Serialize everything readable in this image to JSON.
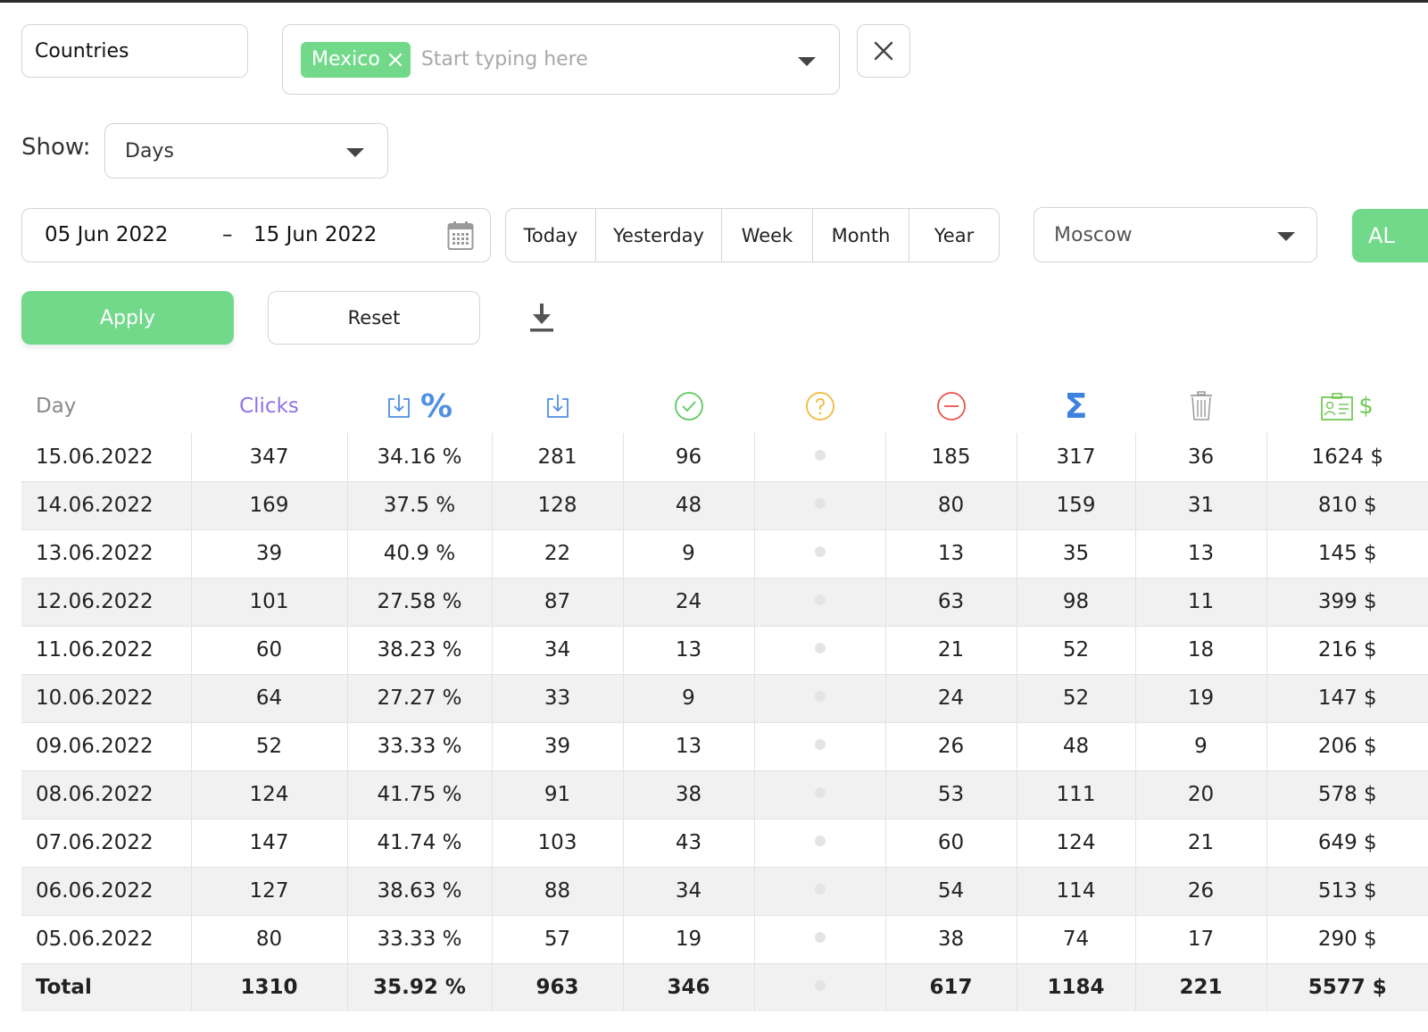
{
  "filters": {
    "field_label": "Countries",
    "selected_tags": [
      {
        "label": "Mexico"
      }
    ],
    "placeholder": "Start typing here"
  },
  "show": {
    "label": "Show:",
    "value": "Days"
  },
  "date_range": {
    "from": "05 Jun 2022",
    "separator": "–",
    "to": "15 Jun 2022"
  },
  "periods": [
    "Today",
    "Yesterday",
    "Week",
    "Month",
    "Year"
  ],
  "timezone": "Moscow",
  "partial_button": "AL",
  "actions": {
    "apply": "Apply",
    "reset": "Reset"
  },
  "table": {
    "headers": {
      "day": "Day",
      "clicks": "Clicks",
      "pct_sign": "%",
      "sigma": "Σ",
      "dollar_sign": "$"
    },
    "header_icons": [
      "",
      "",
      "download-percent-icon",
      "download-icon",
      "check-circle-icon",
      "question-circle-icon",
      "minus-circle-icon",
      "sigma-icon",
      "trash-icon",
      "money-card-icon"
    ],
    "rows": [
      [
        "15.06.2022",
        "347",
        "34.16 %",
        "281",
        "96",
        "",
        "185",
        "317",
        "36",
        "1624 $"
      ],
      [
        "14.06.2022",
        "169",
        "37.5 %",
        "128",
        "48",
        "",
        "80",
        "159",
        "31",
        "810 $"
      ],
      [
        "13.06.2022",
        "39",
        "40.9 %",
        "22",
        "9",
        "",
        "13",
        "35",
        "13",
        "145 $"
      ],
      [
        "12.06.2022",
        "101",
        "27.58 %",
        "87",
        "24",
        "",
        "63",
        "98",
        "11",
        "399 $"
      ],
      [
        "11.06.2022",
        "60",
        "38.23 %",
        "34",
        "13",
        "",
        "21",
        "52",
        "18",
        "216 $"
      ],
      [
        "10.06.2022",
        "64",
        "27.27 %",
        "33",
        "9",
        "",
        "24",
        "52",
        "19",
        "147 $"
      ],
      [
        "09.06.2022",
        "52",
        "33.33 %",
        "39",
        "13",
        "",
        "26",
        "48",
        "9",
        "206 $"
      ],
      [
        "08.06.2022",
        "124",
        "41.75 %",
        "91",
        "38",
        "",
        "53",
        "111",
        "20",
        "578 $"
      ],
      [
        "07.06.2022",
        "147",
        "41.74 %",
        "103",
        "43",
        "",
        "60",
        "124",
        "21",
        "649 $"
      ],
      [
        "06.06.2022",
        "127",
        "38.63 %",
        "88",
        "34",
        "",
        "54",
        "114",
        "26",
        "513 $"
      ],
      [
        "05.06.2022",
        "80",
        "33.33 %",
        "57",
        "19",
        "",
        "38",
        "74",
        "17",
        "290 $"
      ]
    ],
    "total": [
      "Total",
      "1310",
      "35.92 %",
      "963",
      "346",
      "",
      "617",
      "1184",
      "221",
      "5577 $"
    ]
  },
  "colors": {
    "accent_green": "#72d98b",
    "clicks_purple": "#8f72e8",
    "icon_blue": "#4f8fe0",
    "check_green": "#5cc85f",
    "question_orange": "#f2b93b",
    "minus_red": "#e8544c"
  }
}
